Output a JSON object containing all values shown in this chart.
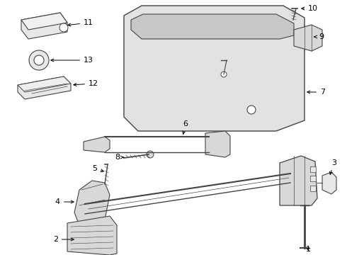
{
  "background_color": "#ffffff",
  "line_color": "#444444",
  "text_color": "#000000",
  "gray_fill": "#d8d8d8",
  "light_gray": "#e8e8e8",
  "mid_gray": "#c8c8c8"
}
